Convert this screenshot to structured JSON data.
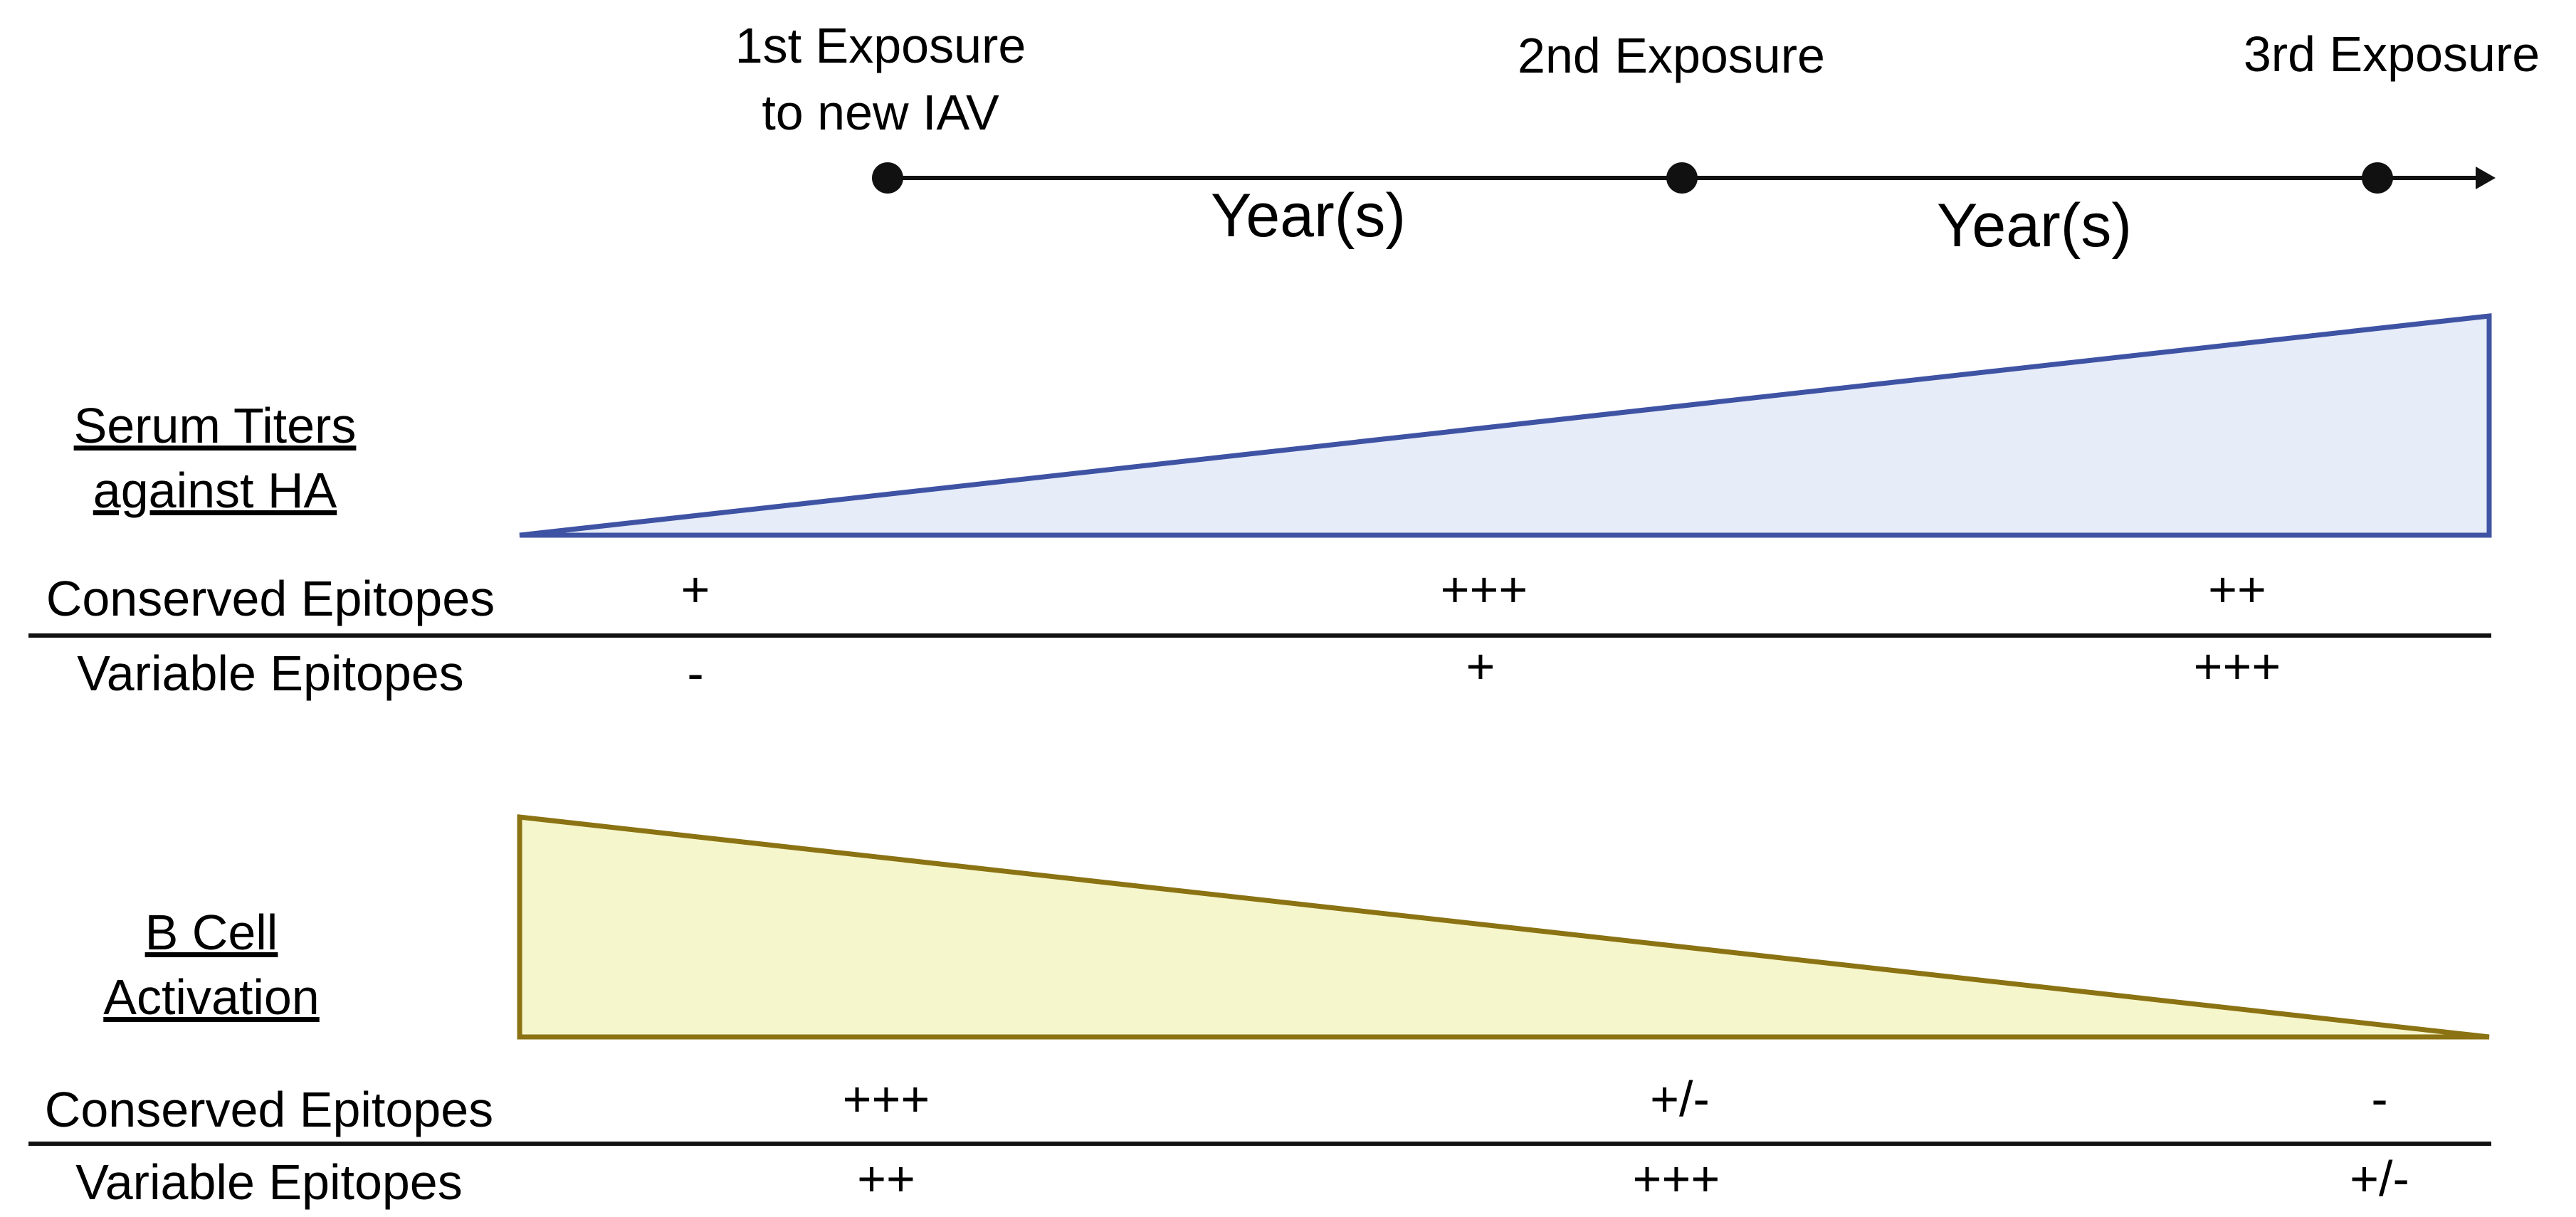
{
  "timeline": {
    "exposures": [
      {
        "line1": "1st Exposure",
        "line2": "to new IAV"
      },
      {
        "line1": "2nd Exposure",
        "line2": ""
      },
      {
        "line1": "3rd Exposure",
        "line2": ""
      }
    ],
    "intervals": [
      "Year(s)",
      "Year(s)"
    ]
  },
  "serum": {
    "label_line1": "Serum Titers",
    "label_line2": "against HA",
    "fill_color": "#E6ECF8",
    "stroke_color": "#3F53A4",
    "rows": [
      {
        "label": "Conserved Epitopes",
        "values": [
          "+",
          "+++",
          "++"
        ]
      },
      {
        "label": "Variable Epitopes",
        "values": [
          "-",
          "+",
          "+++"
        ]
      }
    ]
  },
  "bcell": {
    "label_line1": "B Cell",
    "label_line2": "Activation",
    "fill_color": "#F6F6CC",
    "stroke_color": "#8B7313",
    "rows": [
      {
        "label": "Conserved Epitopes",
        "values": [
          "+++",
          "+/-",
          "-"
        ]
      },
      {
        "label": "Variable Epitopes",
        "values": [
          "++",
          "+++",
          "+/-"
        ]
      }
    ]
  }
}
